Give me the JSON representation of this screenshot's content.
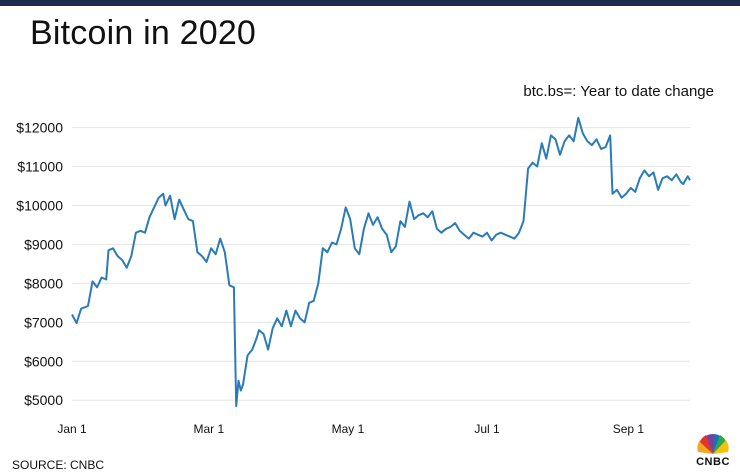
{
  "title": "Bitcoin in 2020",
  "subtitle": "btc.bs=: Year to date change",
  "source": "SOURCE: CNBC",
  "logo_text": "CNBC",
  "colors": {
    "topbar": "#1d2b4f",
    "line": "#2b7bb9",
    "grid": "#e6e6e6",
    "text": "#111111"
  },
  "chart_data": {
    "type": "line",
    "title": "Bitcoin in 2020",
    "subtitle": "btc.bs=: Year to date change",
    "ylim": [
      4800,
      12400
    ],
    "yticks": [
      5000,
      6000,
      7000,
      8000,
      9000,
      10000,
      11000,
      12000
    ],
    "ytick_labels": [
      "$5000",
      "$6000",
      "$7000",
      "$8000",
      "$9000",
      "$10000",
      "$11000",
      "$12000"
    ],
    "xticks": [
      "Jan 1",
      "Mar 1",
      "May 1",
      "Jul 1",
      "Sep 1"
    ],
    "xtick_days": [
      0,
      60,
      121,
      182,
      244
    ],
    "grid": true,
    "legend": "none",
    "series": [
      {
        "points": [
          [
            0,
            7200
          ],
          [
            2,
            6980
          ],
          [
            4,
            7350
          ],
          [
            7,
            7420
          ],
          [
            9,
            8050
          ],
          [
            11,
            7900
          ],
          [
            13,
            8150
          ],
          [
            15,
            8100
          ],
          [
            16,
            8850
          ],
          [
            18,
            8900
          ],
          [
            20,
            8700
          ],
          [
            22,
            8600
          ],
          [
            24,
            8400
          ],
          [
            26,
            8700
          ],
          [
            28,
            9300
          ],
          [
            30,
            9350
          ],
          [
            32,
            9300
          ],
          [
            34,
            9700
          ],
          [
            36,
            9950
          ],
          [
            38,
            10200
          ],
          [
            40,
            10300
          ],
          [
            41,
            10000
          ],
          [
            43,
            10250
          ],
          [
            45,
            9650
          ],
          [
            47,
            10150
          ],
          [
            49,
            9900
          ],
          [
            51,
            9650
          ],
          [
            53,
            9600
          ],
          [
            55,
            8800
          ],
          [
            57,
            8700
          ],
          [
            59,
            8550
          ],
          [
            61,
            8900
          ],
          [
            63,
            8750
          ],
          [
            65,
            9150
          ],
          [
            67,
            8800
          ],
          [
            69,
            7950
          ],
          [
            71,
            7900
          ],
          [
            72,
            4850
          ],
          [
            73,
            5500
          ],
          [
            74,
            5250
          ],
          [
            75,
            5400
          ],
          [
            77,
            6150
          ],
          [
            79,
            6300
          ],
          [
            81,
            6600
          ],
          [
            82,
            6800
          ],
          [
            84,
            6700
          ],
          [
            86,
            6300
          ],
          [
            88,
            6850
          ],
          [
            90,
            7100
          ],
          [
            92,
            6900
          ],
          [
            94,
            7300
          ],
          [
            96,
            6900
          ],
          [
            98,
            7300
          ],
          [
            100,
            7100
          ],
          [
            102,
            7000
          ],
          [
            104,
            7500
          ],
          [
            106,
            7550
          ],
          [
            108,
            8000
          ],
          [
            110,
            8900
          ],
          [
            112,
            8800
          ],
          [
            114,
            9050
          ],
          [
            116,
            9000
          ],
          [
            118,
            9400
          ],
          [
            120,
            9950
          ],
          [
            122,
            9650
          ],
          [
            124,
            8900
          ],
          [
            126,
            8750
          ],
          [
            128,
            9400
          ],
          [
            130,
            9800
          ],
          [
            132,
            9500
          ],
          [
            134,
            9700
          ],
          [
            136,
            9400
          ],
          [
            138,
            9250
          ],
          [
            140,
            8800
          ],
          [
            142,
            8950
          ],
          [
            144,
            9600
          ],
          [
            146,
            9450
          ],
          [
            148,
            10100
          ],
          [
            150,
            9650
          ],
          [
            152,
            9750
          ],
          [
            154,
            9800
          ],
          [
            156,
            9700
          ],
          [
            158,
            9850
          ],
          [
            160,
            9400
          ],
          [
            162,
            9300
          ],
          [
            164,
            9400
          ],
          [
            166,
            9450
          ],
          [
            168,
            9550
          ],
          [
            170,
            9350
          ],
          [
            172,
            9250
          ],
          [
            174,
            9150
          ],
          [
            176,
            9300
          ],
          [
            178,
            9250
          ],
          [
            180,
            9200
          ],
          [
            182,
            9300
          ],
          [
            184,
            9100
          ],
          [
            186,
            9250
          ],
          [
            188,
            9300
          ],
          [
            190,
            9250
          ],
          [
            192,
            9200
          ],
          [
            194,
            9150
          ],
          [
            196,
            9300
          ],
          [
            198,
            9600
          ],
          [
            200,
            10950
          ],
          [
            202,
            11100
          ],
          [
            204,
            11000
          ],
          [
            206,
            11600
          ],
          [
            208,
            11200
          ],
          [
            210,
            11800
          ],
          [
            212,
            11700
          ],
          [
            214,
            11300
          ],
          [
            216,
            11650
          ],
          [
            218,
            11800
          ],
          [
            220,
            11650
          ],
          [
            222,
            12250
          ],
          [
            224,
            11850
          ],
          [
            226,
            11650
          ],
          [
            228,
            11550
          ],
          [
            230,
            11700
          ],
          [
            232,
            11450
          ],
          [
            234,
            11500
          ],
          [
            236,
            11800
          ],
          [
            237,
            10300
          ],
          [
            239,
            10400
          ],
          [
            241,
            10200
          ],
          [
            243,
            10300
          ],
          [
            245,
            10450
          ],
          [
            247,
            10350
          ],
          [
            249,
            10700
          ],
          [
            251,
            10900
          ],
          [
            253,
            10750
          ],
          [
            255,
            10850
          ],
          [
            257,
            10400
          ],
          [
            259,
            10700
          ],
          [
            261,
            10750
          ],
          [
            263,
            10650
          ],
          [
            265,
            10800
          ],
          [
            267,
            10600
          ],
          [
            268,
            10550
          ],
          [
            270,
            10750
          ],
          [
            271,
            10650
          ]
        ]
      }
    ]
  }
}
